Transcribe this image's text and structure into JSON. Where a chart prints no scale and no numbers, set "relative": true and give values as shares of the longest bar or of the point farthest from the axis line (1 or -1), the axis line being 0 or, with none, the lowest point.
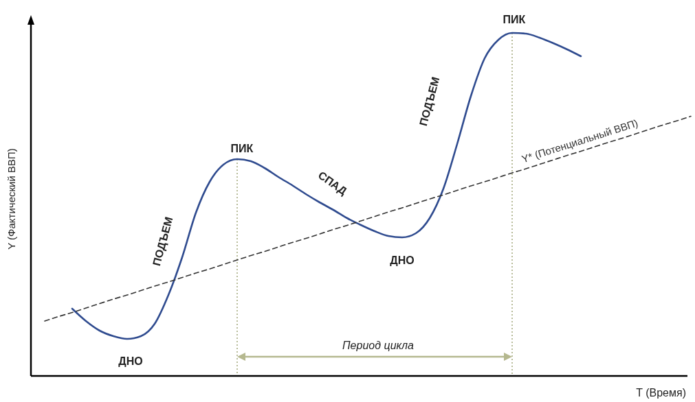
{
  "chart_data": {
    "type": "line",
    "relative": true,
    "xlabel": "T (Время)",
    "ylabel": "Y (Фактический ВВП)",
    "categories": [
      null,
      null,
      null,
      null,
      null,
      null,
      null,
      null,
      null,
      null,
      null,
      null,
      null,
      null,
      null,
      null,
      null,
      null,
      null,
      null,
      null,
      null,
      null,
      null,
      null,
      null,
      null,
      null,
      null,
      null,
      null,
      null,
      null,
      null,
      null,
      null,
      null,
      null,
      null,
      null,
      null,
      null,
      null,
      null,
      null,
      null,
      null,
      null
    ],
    "series": [
      {
        "color": "#2f4b8f",
        "line_style": "solid",
        "values": [
          null,
          null,
          0.196,
          0.16,
          0.132,
          0.116,
          0.108,
          0.116,
          0.152,
          0.236,
          0.346,
          0.476,
          0.566,
          0.616,
          0.632,
          0.626,
          0.606,
          0.58,
          0.556,
          0.53,
          0.506,
          0.484,
          0.46,
          0.44,
          0.422,
          0.408,
          0.404,
          0.416,
          0.46,
          0.546,
          0.676,
          0.816,
          0.926,
          0.98,
          1,
          0.998,
          0.986,
          0.97,
          0.952,
          0.932,
          null,
          null,
          null,
          null,
          null,
          null,
          null,
          null
        ]
      },
      {
        "name": "Y* (Потенциальный ВВП)",
        "color": "#333333",
        "line_style": "dashed",
        "values": [
          0.16,
          0.173,
          0.185,
          0.198,
          0.211,
          0.224,
          0.236,
          0.249,
          0.262,
          0.274,
          0.287,
          0.3,
          0.312,
          0.325,
          0.338,
          0.351,
          0.363,
          0.376,
          0.389,
          0.401,
          0.414,
          0.427,
          0.439,
          0.452,
          0.465,
          0.478,
          0.49,
          0.503,
          0.516,
          0.528,
          0.541,
          0.554,
          0.566,
          0.579,
          0.592,
          0.604,
          0.617,
          0.63,
          0.643,
          0.655,
          0.668,
          0.681,
          0.693,
          0.706,
          0.719,
          0.732,
          0.744,
          0.757
        ]
      }
    ],
    "annotations": [
      "ПИК",
      "ПИК",
      "ДНО",
      "ДНО",
      "ПОДЪЕМ",
      "ПОДЪЕМ",
      "СПАД",
      "Период цикла"
    ]
  }
}
